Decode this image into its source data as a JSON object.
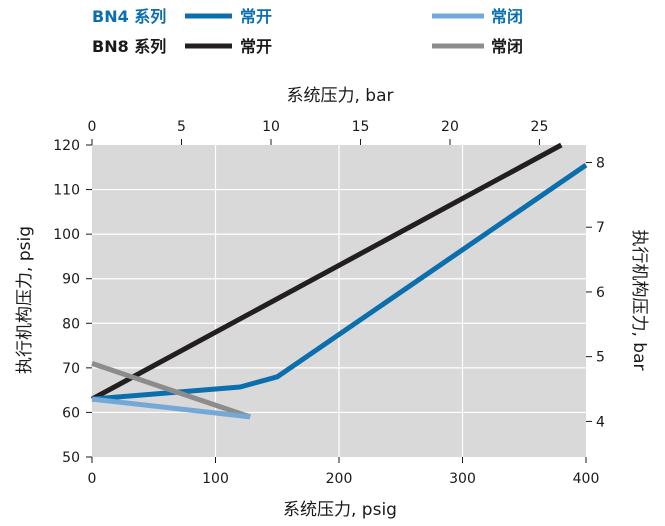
{
  "chart_data": {
    "type": "line",
    "legend": {
      "placement": "top",
      "groups": [
        {
          "label": "BN4 系列",
          "color": "#0c6fad",
          "no_label": "常开",
          "nc_label": "常闭",
          "no_color": "#0c6fad",
          "nc_color": "#74a8d6"
        },
        {
          "label": "BN8 系列",
          "color": "#1a1a1a",
          "no_label": "常开",
          "nc_label": "常闭",
          "no_color": "#231f20",
          "nc_color": "#8c8c8c"
        }
      ]
    },
    "x_bottom": {
      "label": "系统压力, psig",
      "range": [
        0,
        400
      ],
      "ticks": [
        0,
        100,
        200,
        300,
        400
      ]
    },
    "x_top": {
      "label": "系统压力, bar",
      "range": [
        0,
        27.6
      ],
      "ticks": [
        0,
        5,
        10,
        15,
        20,
        25
      ]
    },
    "y_left": {
      "label": "执行机构压力, psig",
      "range": [
        50,
        120
      ],
      "ticks": [
        50,
        60,
        70,
        80,
        90,
        100,
        110,
        120
      ]
    },
    "y_right": {
      "label": "执行机构压力, bar",
      "range": [
        3.45,
        8.27
      ],
      "ticks": [
        4,
        5,
        6,
        7,
        8
      ]
    },
    "grid": true,
    "background": "#d9d9da",
    "series": [
      {
        "name": "BN8 系列 常开",
        "color": "#231f20",
        "x": [
          0,
          380
        ],
        "y": [
          63,
          120
        ]
      },
      {
        "name": "BN4 系列 常开",
        "color": "#0c6fad",
        "x": [
          0,
          120,
          150,
          400
        ],
        "y": [
          63,
          65.7,
          68,
          115.5
        ]
      },
      {
        "name": "BN8 系列 常闭",
        "color": "#8c8c8c",
        "x": [
          0,
          128
        ],
        "y": [
          71,
          59
        ]
      },
      {
        "name": "BN4 系列 常闭",
        "color": "#74a8d6",
        "x": [
          0,
          128
        ],
        "y": [
          63,
          59
        ]
      }
    ]
  }
}
